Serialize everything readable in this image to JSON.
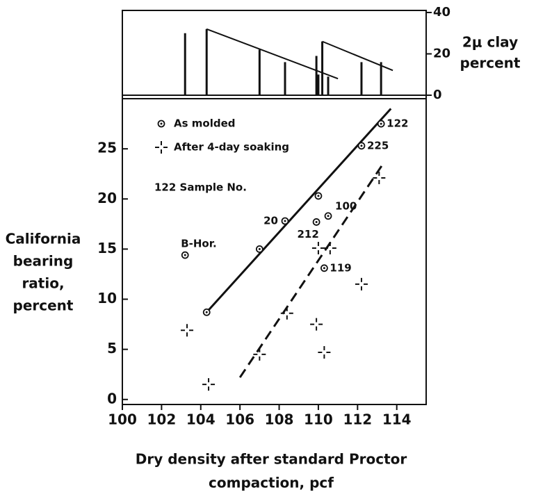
{
  "chart_data": [
    {
      "type": "bar",
      "ylabel": [
        "2μ clay",
        "percent"
      ],
      "x": [
        103.2,
        104.3,
        107.0,
        108.3,
        109.9,
        110.0,
        110.2,
        110.5,
        112.2,
        113.2
      ],
      "series": [
        {
          "color": "#111111",
          "axis": "y2",
          "values": [
            30,
            32,
            22,
            16,
            19,
            10,
            26,
            9,
            16,
            16
          ]
        }
      ],
      "lines": [
        {
          "x": [
            104.3,
            111.0
          ],
          "values": [
            32,
            8
          ]
        },
        {
          "x": [
            110.2,
            113.8
          ],
          "values": [
            26,
            12
          ]
        }
      ],
      "xlim": [
        100,
        115.5
      ],
      "y2lim": [
        0,
        41
      ],
      "y2ticks": [
        0,
        20,
        40
      ]
    },
    {
      "type": "scatter",
      "ylabel": [
        "California",
        "bearing",
        "ratio,",
        "percent"
      ],
      "xlabel": [
        "Dry density after standard Proctor",
        "compaction, pcf"
      ],
      "legend_note": "122 Sample No.",
      "series": [
        {
          "name": "As molded",
          "marker": "dot",
          "color": "#111111",
          "x": [
            103.2,
            104.3,
            107.0,
            108.3,
            110.0,
            109.9,
            110.5,
            110.3,
            112.2,
            113.2
          ],
          "values": [
            14.4,
            8.7,
            15.0,
            17.8,
            20.3,
            17.7,
            18.3,
            13.1,
            25.3,
            27.5
          ],
          "labels": [
            "B-Hor.",
            null,
            null,
            "20",
            null,
            "212",
            "100",
            "119",
            "225",
            "122"
          ]
        },
        {
          "name": "After 4-day soaking",
          "marker": "cross",
          "color": "#111111",
          "x": [
            103.3,
            104.4,
            107.0,
            108.4,
            109.9,
            110.0,
            110.6,
            110.3,
            112.2,
            113.1
          ],
          "values": [
            6.9,
            1.5,
            4.5,
            8.6,
            7.5,
            15.1,
            15.1,
            4.7,
            11.5,
            22.1
          ]
        }
      ],
      "lines": [
        {
          "x": [
            104.3,
            113.7
          ],
          "values": [
            8.7,
            29.0
          ],
          "dash": false
        },
        {
          "x": [
            106.0,
            113.3
          ],
          "values": [
            2.2,
            23.5
          ],
          "dash": true
        }
      ],
      "xlim": [
        100,
        115.5
      ],
      "ylim": [
        -0.5,
        30
      ],
      "xticks": [
        100,
        102,
        104,
        106,
        108,
        110,
        112,
        114
      ],
      "yticks": [
        0,
        5,
        10,
        15,
        20,
        25
      ]
    }
  ]
}
